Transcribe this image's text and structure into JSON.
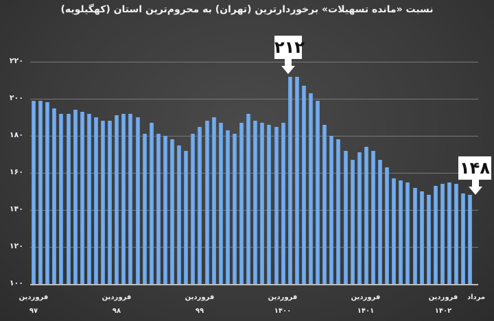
{
  "title": "نسبت «مانده تسهیلات» برخوردارترین (تهران) به محروم‌ترین استان (کهگیلویه)",
  "y_ticks": [
    "۲۲۰",
    "۲۰۰",
    "۱۸۰",
    "۱۶۰",
    "۱۴۰",
    "۱۲۰",
    "۱۰۰"
  ],
  "x_labels": [
    {
      "month": "فروردین",
      "year": "۹۷"
    },
    {
      "month": "فروردین",
      "year": "۹۸"
    },
    {
      "month": "فروردین",
      "year": "۹۹"
    },
    {
      "month": "فروردین",
      "year": "۱۴۰۰"
    },
    {
      "month": "فروردین",
      "year": "۱۴۰۱"
    },
    {
      "month": "فروردین",
      "year": "۱۴۰۲"
    },
    {
      "month": "مرداد",
      "year": ""
    }
  ],
  "callouts": {
    "peak": "۲۱۲",
    "last": "۱۴۸"
  },
  "colors": {
    "bar": "#5b9ae0",
    "background": "#3a3a3a",
    "callout": "#ffffff"
  },
  "chart_data": {
    "type": "bar",
    "title": "نسبت «مانده تسهیلات» برخوردارترین (تهران) به محروم‌ترین استان (کهگیلویه)",
    "xlabel": "",
    "ylabel": "",
    "ylim": [
      100,
      220
    ],
    "yticks": [
      100,
      120,
      140,
      160,
      180,
      200,
      220
    ],
    "grid": true,
    "legend": null,
    "x_tick_labels": [
      "فروردین ۹۷",
      "فروردین ۹۸",
      "فروردین ۹۹",
      "فروردین ۱۴۰۰",
      "فروردین ۱۴۰۱",
      "فروردین ۱۴۰۲",
      "مرداد"
    ],
    "annotations": [
      {
        "label": "۲۱۲",
        "value": 212,
        "index": 37
      },
      {
        "label": "۱۴۸",
        "value": 148,
        "index": 63
      }
    ],
    "values": [
      199,
      199,
      198,
      195,
      192,
      192,
      194,
      193,
      192,
      190,
      188,
      188,
      191,
      192,
      192,
      190,
      181,
      187,
      181,
      180,
      178,
      175,
      172,
      181,
      185,
      188,
      190,
      187,
      183,
      181,
      187,
      192,
      188,
      187,
      186,
      185,
      187,
      212,
      212,
      207,
      203,
      199,
      186,
      180,
      178,
      172,
      167,
      171,
      174,
      172,
      167,
      163,
      157,
      156,
      155,
      152,
      150,
      148,
      153,
      154,
      155,
      154,
      149,
      148
    ]
  }
}
